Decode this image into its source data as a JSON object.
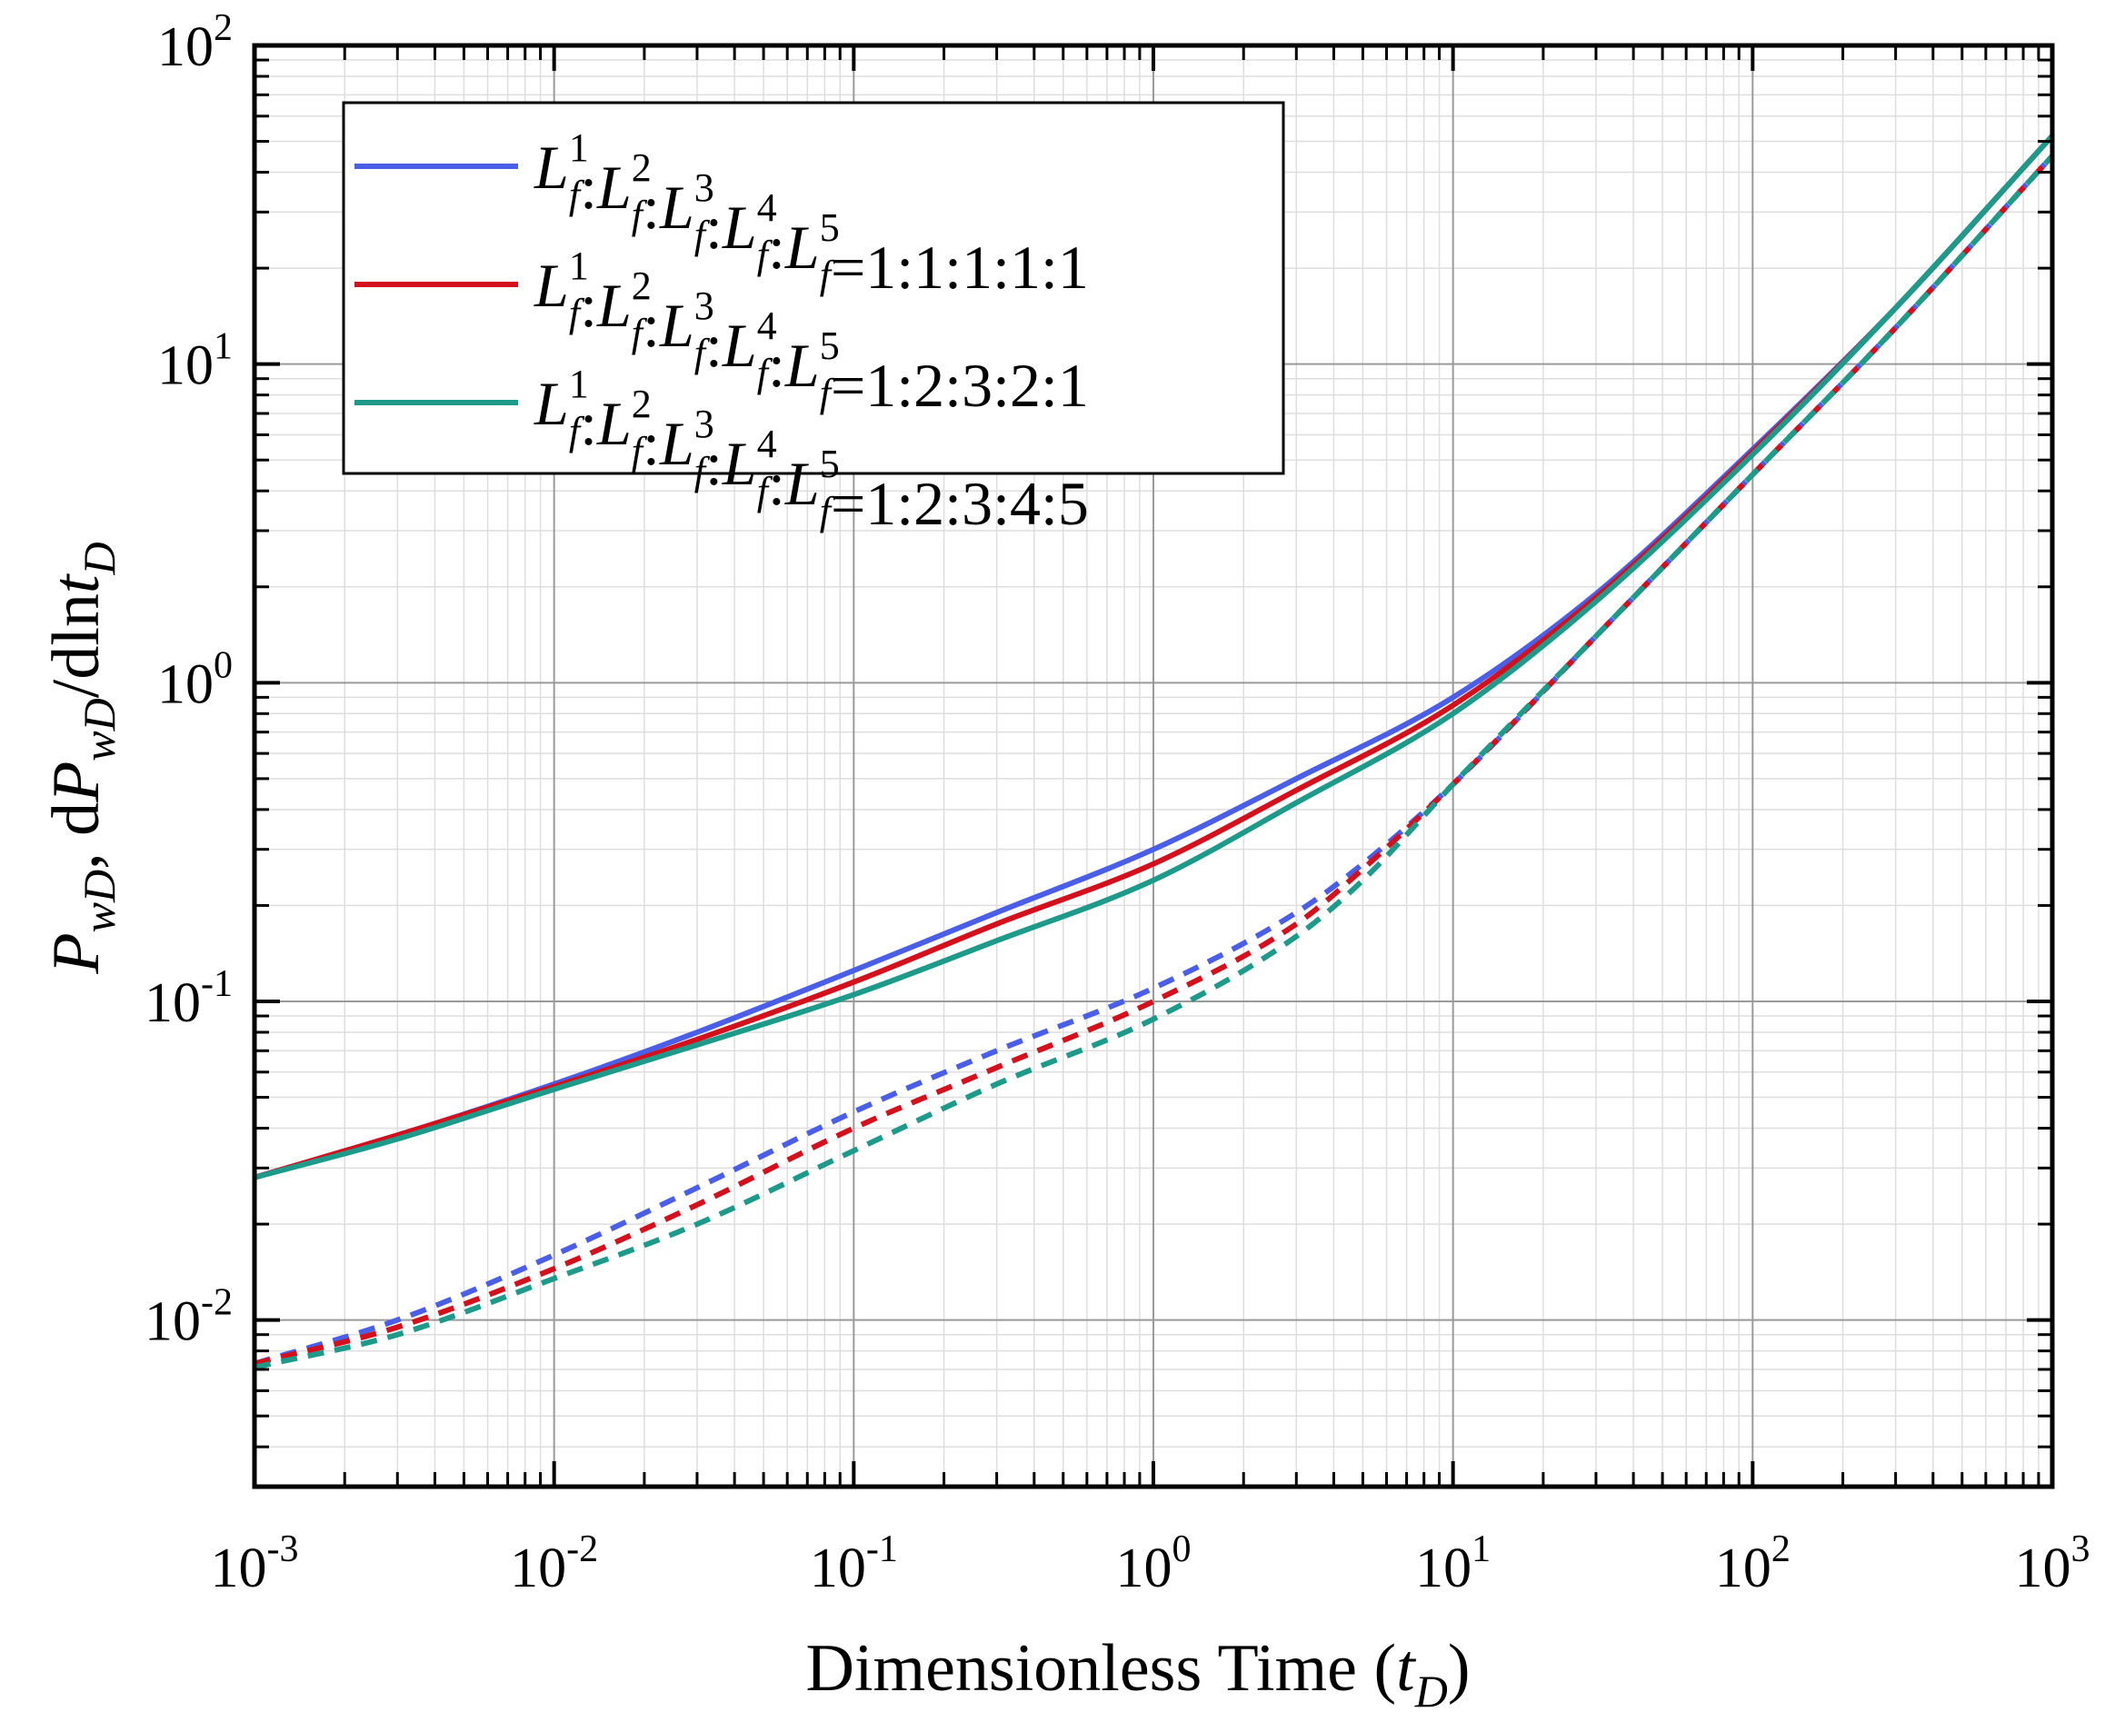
{
  "chart_data": {
    "type": "line",
    "xscale": "log",
    "yscale": "log",
    "xlim": [
      0.001,
      1000
    ],
    "ylim": [
      0.003,
      100
    ],
    "grid": true,
    "xlabel": {
      "main": "Dimensionless Time (",
      "var": "t",
      "sub": "D",
      "close": ")"
    },
    "ylabel": {
      "p1": "P",
      "p1_sub": "wD",
      "sep": ", d",
      "p2": "P",
      "p2_sub": "wD",
      "mid": "/dln",
      "t": "t",
      "t_sub": "D"
    },
    "x_ticks": [
      {
        "value": 0.001,
        "base": "10",
        "exp": "-3"
      },
      {
        "value": 0.01,
        "base": "10",
        "exp": "-2"
      },
      {
        "value": 0.1,
        "base": "10",
        "exp": "-1"
      },
      {
        "value": 1,
        "base": "10",
        "exp": "0"
      },
      {
        "value": 10,
        "base": "10",
        "exp": "1"
      },
      {
        "value": 100,
        "base": "10",
        "exp": "2"
      },
      {
        "value": 1000,
        "base": "10",
        "exp": "3"
      }
    ],
    "y_ticks": [
      {
        "value": 0.01,
        "base": "10",
        "exp": "-2"
      },
      {
        "value": 0.1,
        "base": "10",
        "exp": "-1"
      },
      {
        "value": 1,
        "base": "10",
        "exp": "0"
      },
      {
        "value": 10,
        "base": "10",
        "exp": "1"
      },
      {
        "value": 100,
        "base": "10",
        "exp": "2"
      }
    ],
    "legend": {
      "placement": "top-left",
      "entries": [
        {
          "prefix": "L",
          "sub": "f",
          "sups": [
            "1",
            "2",
            "3",
            "4",
            "5"
          ],
          "sep": ":",
          "ratio": "=1:1:1:1:1",
          "color": "#4a5ee8"
        },
        {
          "prefix": "L",
          "sub": "f",
          "sups": [
            "1",
            "2",
            "3",
            "4",
            "5"
          ],
          "sep": ":",
          "ratio": "=1:2:3:2:1",
          "color": "#d4101c"
        },
        {
          "prefix": "L",
          "sub": "f",
          "sups": [
            "1",
            "2",
            "3",
            "4",
            "5"
          ],
          "sep": ":",
          "ratio": "=1:2:3:4:5",
          "color": "#1e9a8a"
        }
      ]
    },
    "series": [
      {
        "name": "PwD 1:1:1:1:1",
        "style": "solid",
        "color": "#4a5ee8",
        "x": [
          0.001,
          0.003,
          0.01,
          0.03,
          0.1,
          0.3,
          1,
          3,
          10,
          30,
          100,
          300,
          1000
        ],
        "y": [
          0.028,
          0.038,
          0.055,
          0.08,
          0.125,
          0.19,
          0.3,
          0.5,
          0.9,
          1.9,
          5.4,
          15.0,
          52.0
        ]
      },
      {
        "name": "PwD 1:2:3:2:1",
        "style": "solid",
        "color": "#d4101c",
        "x": [
          0.001,
          0.003,
          0.01,
          0.03,
          0.1,
          0.3,
          1,
          3,
          10,
          30,
          100,
          300,
          1000
        ],
        "y": [
          0.028,
          0.038,
          0.054,
          0.076,
          0.115,
          0.175,
          0.27,
          0.46,
          0.85,
          1.85,
          5.3,
          15.0,
          52.0
        ]
      },
      {
        "name": "PwD 1:2:3:4:5",
        "style": "solid",
        "color": "#1e9a8a",
        "x": [
          0.001,
          0.003,
          0.01,
          0.03,
          0.1,
          0.3,
          1,
          3,
          10,
          30,
          100,
          300,
          1000
        ],
        "y": [
          0.028,
          0.037,
          0.053,
          0.073,
          0.105,
          0.155,
          0.24,
          0.42,
          0.8,
          1.8,
          5.2,
          15.0,
          52.0
        ]
      },
      {
        "name": "dPwD/dlntD 1:1:1:1:1",
        "style": "dashed",
        "color": "#4a5ee8",
        "x": [
          0.001,
          0.003,
          0.01,
          0.03,
          0.1,
          0.3,
          1,
          3,
          5,
          10,
          30,
          100,
          300,
          1000
        ],
        "y": [
          0.0073,
          0.01,
          0.016,
          0.026,
          0.045,
          0.07,
          0.11,
          0.19,
          0.27,
          0.48,
          1.4,
          4.5,
          13.0,
          45.0
        ]
      },
      {
        "name": "dPwD/dlntD 1:2:3:2:1",
        "style": "dashed",
        "color": "#d4101c",
        "x": [
          0.001,
          0.003,
          0.01,
          0.03,
          0.1,
          0.3,
          1,
          3,
          5,
          10,
          30,
          100,
          300,
          1000
        ],
        "y": [
          0.0073,
          0.0095,
          0.0145,
          0.023,
          0.04,
          0.062,
          0.1,
          0.175,
          0.26,
          0.48,
          1.4,
          4.5,
          13.0,
          45.0
        ]
      },
      {
        "name": "dPwD/dlntD 1:2:3:4:5",
        "style": "dashed",
        "color": "#1e9a8a",
        "x": [
          0.001,
          0.003,
          0.01,
          0.03,
          0.1,
          0.3,
          1,
          3,
          5,
          10,
          30,
          100,
          300,
          1000
        ],
        "y": [
          0.0071,
          0.009,
          0.0135,
          0.02,
          0.034,
          0.055,
          0.088,
          0.16,
          0.24,
          0.48,
          1.4,
          4.5,
          13.0,
          45.0
        ]
      }
    ]
  }
}
